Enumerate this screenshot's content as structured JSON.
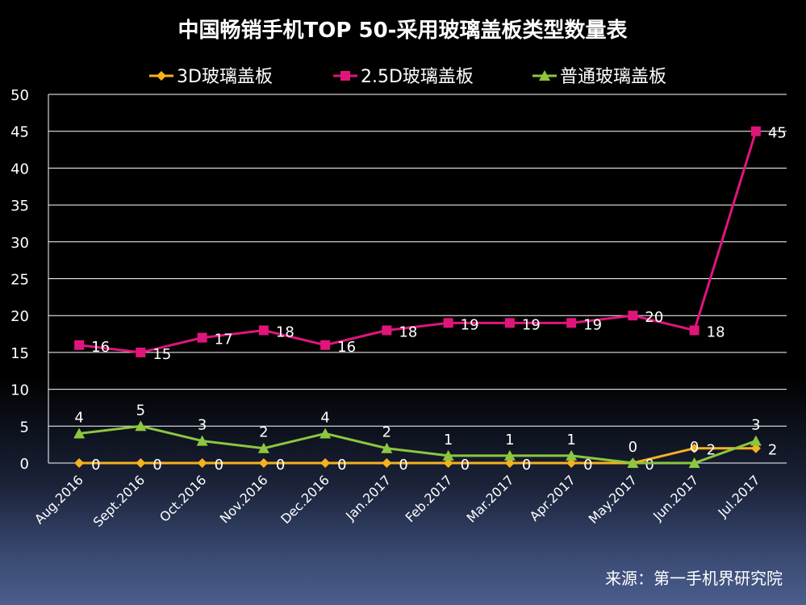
{
  "chart_data": {
    "type": "line",
    "title": "中国畅销手机TOP 50-采用玻璃盖板类型数量表",
    "categories": [
      "Aug.2016",
      "Sept.2016",
      "Oct.2016",
      "Nov.2016",
      "Dec.2016",
      "Jan.2017",
      "Feb.2017",
      "Mar.2017",
      "Apr.2017",
      "May.2017",
      "Jun.2017",
      "Jul.2017"
    ],
    "ylim": [
      0,
      50
    ],
    "yticks": [
      0,
      5,
      10,
      15,
      20,
      25,
      30,
      35,
      40,
      45,
      50
    ],
    "grid": true,
    "legend_position": "top",
    "series": [
      {
        "name": "3D玻璃盖板",
        "color": "#f5b21e",
        "marker": "diamond",
        "values": [
          0,
          0,
          0,
          0,
          0,
          0,
          0,
          0,
          0,
          0,
          2,
          2
        ]
      },
      {
        "name": "2.5D玻璃盖板",
        "color": "#e0157a",
        "marker": "square",
        "values": [
          16,
          15,
          17,
          18,
          16,
          18,
          19,
          19,
          19,
          20,
          18,
          45
        ]
      },
      {
        "name": "普通玻璃盖板",
        "color": "#8dc63f",
        "marker": "triangle",
        "values": [
          4,
          5,
          3,
          2,
          4,
          2,
          1,
          1,
          1,
          0,
          0,
          3
        ]
      }
    ]
  },
  "source": "来源：第一手机界研究院"
}
